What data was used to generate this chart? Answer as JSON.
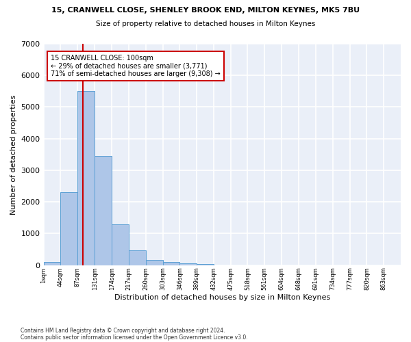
{
  "title1": "15, CRANWELL CLOSE, SHENLEY BROOK END, MILTON KEYNES, MK5 7BU",
  "title2": "Size of property relative to detached houses in Milton Keynes",
  "xlabel": "Distribution of detached houses by size in Milton Keynes",
  "ylabel": "Number of detached properties",
  "bin_edges": [
    1,
    44,
    87,
    131,
    174,
    217,
    260,
    303,
    346,
    389,
    432,
    475,
    518,
    561,
    604,
    648,
    691,
    734,
    777,
    820,
    863
  ],
  "bar_heights": [
    100,
    2300,
    5500,
    3450,
    1300,
    470,
    160,
    100,
    50,
    30,
    0,
    0,
    0,
    0,
    0,
    0,
    0,
    0,
    0,
    0
  ],
  "bar_color": "#aec6e8",
  "bar_edge_color": "#5a9fd4",
  "vline_x": 100,
  "vline_color": "#cc0000",
  "ylim": [
    0,
    7000
  ],
  "annotation_title": "15 CRANWELL CLOSE: 100sqm",
  "annotation_line1": "← 29% of detached houses are smaller (3,771)",
  "annotation_line2": "71% of semi-detached houses are larger (9,308) →",
  "annotation_box_color": "#cc0000",
  "footnote1": "Contains HM Land Registry data © Crown copyright and database right 2024.",
  "footnote2": "Contains public sector information licensed under the Open Government Licence v3.0.",
  "background_color": "#eaeff8",
  "grid_color": "#ffffff",
  "tick_labels": [
    "1sqm",
    "44sqm",
    "87sqm",
    "131sqm",
    "174sqm",
    "217sqm",
    "260sqm",
    "303sqm",
    "346sqm",
    "389sqm",
    "432sqm",
    "475sqm",
    "518sqm",
    "561sqm",
    "604sqm",
    "648sqm",
    "691sqm",
    "734sqm",
    "777sqm",
    "820sqm",
    "863sqm"
  ]
}
